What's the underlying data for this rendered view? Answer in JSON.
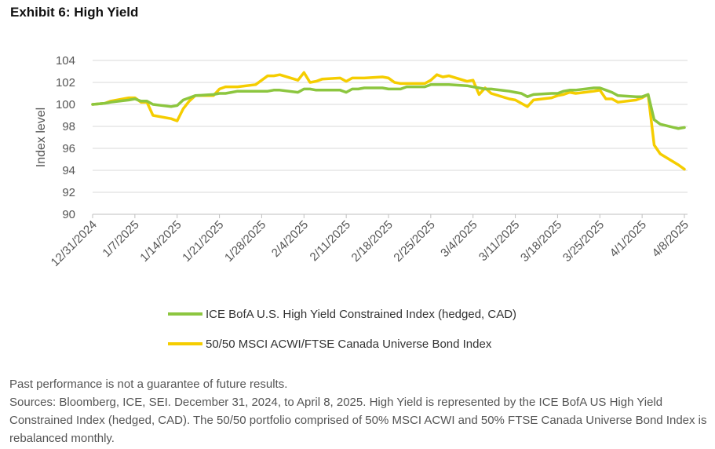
{
  "exhibit_title": "Exhibit 6: High Yield",
  "footer": {
    "disclaimer": "Past performance is not a guarantee of future results.",
    "sources": "Sources: Bloomberg, ICE, SEI. December 31, 2024, to April 8, 2025. High Yield is represented by the ICE BofA US High Yield Constrained Index (hedged, CAD). The 50/50 portfolio comprised of 50% MSCI ACWI and 50% FTSE Canada Universe Bond Index is rebalanced monthly."
  },
  "chart_data": {
    "type": "line",
    "ylabel": "Index level",
    "xlabel": "",
    "ylim": [
      90,
      104
    ],
    "yticks": [
      90,
      92,
      94,
      96,
      98,
      100,
      102,
      104
    ],
    "grid": "horizontal",
    "legend_position": "bottom",
    "x_tick_labels": [
      "12/31/2024",
      "1/7/2025",
      "1/14/2025",
      "1/21/2025",
      "1/28/2025",
      "2/4/2025",
      "2/11/2025",
      "2/18/2025",
      "2/25/2025",
      "3/4/2025",
      "3/11/2025",
      "3/18/2025",
      "3/25/2025",
      "4/1/2025",
      "4/8/2025"
    ],
    "x": [
      "2024-12-31",
      "2025-01-02",
      "2025-01-03",
      "2025-01-06",
      "2025-01-07",
      "2025-01-08",
      "2025-01-09",
      "2025-01-10",
      "2025-01-13",
      "2025-01-14",
      "2025-01-15",
      "2025-01-16",
      "2025-01-17",
      "2025-01-20",
      "2025-01-21",
      "2025-01-22",
      "2025-01-23",
      "2025-01-24",
      "2025-01-27",
      "2025-01-28",
      "2025-01-29",
      "2025-01-30",
      "2025-01-31",
      "2025-02-03",
      "2025-02-04",
      "2025-02-05",
      "2025-02-06",
      "2025-02-07",
      "2025-02-10",
      "2025-02-11",
      "2025-02-12",
      "2025-02-13",
      "2025-02-14",
      "2025-02-17",
      "2025-02-18",
      "2025-02-19",
      "2025-02-20",
      "2025-02-21",
      "2025-02-24",
      "2025-02-25",
      "2025-02-26",
      "2025-02-27",
      "2025-02-28",
      "2025-03-03",
      "2025-03-04",
      "2025-03-05",
      "2025-03-06",
      "2025-03-07",
      "2025-03-10",
      "2025-03-11",
      "2025-03-12",
      "2025-03-13",
      "2025-03-14",
      "2025-03-17",
      "2025-03-18",
      "2025-03-19",
      "2025-03-20",
      "2025-03-21",
      "2025-03-24",
      "2025-03-25",
      "2025-03-26",
      "2025-03-27",
      "2025-03-28",
      "2025-03-31",
      "2025-04-01",
      "2025-04-02",
      "2025-04-03",
      "2025-04-04",
      "2025-04-07",
      "2025-04-08"
    ],
    "series": [
      {
        "name": "ICE BofA U.S. High Yield Constrained Index (hedged, CAD)",
        "color": "#8cc63f",
        "values": [
          100.0,
          100.1,
          100.2,
          100.4,
          100.5,
          100.3,
          100.3,
          100.0,
          99.8,
          99.9,
          100.4,
          100.6,
          100.8,
          100.9,
          101.0,
          101.0,
          101.1,
          101.2,
          101.2,
          101.2,
          101.2,
          101.3,
          101.3,
          101.1,
          101.4,
          101.4,
          101.3,
          101.3,
          101.3,
          101.1,
          101.4,
          101.4,
          101.5,
          101.5,
          101.4,
          101.4,
          101.4,
          101.6,
          101.6,
          101.8,
          101.8,
          101.8,
          101.8,
          101.7,
          101.6,
          101.5,
          101.4,
          101.4,
          101.2,
          101.1,
          101.0,
          100.7,
          100.9,
          101.0,
          101.0,
          101.2,
          101.3,
          101.3,
          101.5,
          101.5,
          101.3,
          101.1,
          100.8,
          100.7,
          100.7,
          100.9,
          98.6,
          98.2,
          97.8,
          97.9
        ]
      },
      {
        "name": "50/50 MSCI ACWI/FTSE Canada Universe Bond Index",
        "color": "#f5cd00",
        "values": [
          100.0,
          100.1,
          100.3,
          100.6,
          100.6,
          100.2,
          100.2,
          99.0,
          98.7,
          98.5,
          99.6,
          100.3,
          100.8,
          100.8,
          101.4,
          101.6,
          101.6,
          101.6,
          101.8,
          102.2,
          102.6,
          102.6,
          102.7,
          102.2,
          102.9,
          102.0,
          102.1,
          102.3,
          102.4,
          102.1,
          102.4,
          102.4,
          102.4,
          102.5,
          102.4,
          102.0,
          101.9,
          101.9,
          101.9,
          102.2,
          102.7,
          102.5,
          102.6,
          102.1,
          102.2,
          100.9,
          101.5,
          101.0,
          100.5,
          100.4,
          100.1,
          99.8,
          100.4,
          100.6,
          100.8,
          100.9,
          101.1,
          101.0,
          101.2,
          101.3,
          100.5,
          100.5,
          100.2,
          100.4,
          100.6,
          100.9,
          96.3,
          95.5,
          94.5,
          94.1
        ]
      }
    ]
  }
}
